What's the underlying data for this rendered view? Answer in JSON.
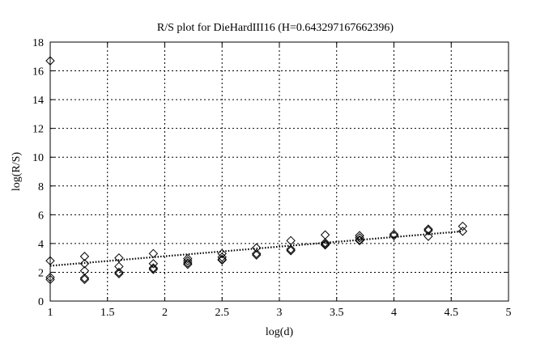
{
  "chart_data": {
    "type": "scatter",
    "title": "R/S plot for DieHardIII16 (H=0.643297167662396)",
    "xlabel": "log(d)",
    "ylabel": "log(R/S)",
    "xlim": [
      1,
      5
    ],
    "ylim": [
      0,
      18
    ],
    "xticks": [
      "1",
      "1.5",
      "2",
      "2.5",
      "3",
      "3.5",
      "4",
      "4.5",
      "5"
    ],
    "yticks": [
      "0",
      "2",
      "4",
      "6",
      "8",
      "10",
      "12",
      "14",
      "16",
      "18"
    ],
    "grid": true,
    "marker": "diamond",
    "points": [
      [
        1.0,
        16.7
      ],
      [
        1.0,
        2.8
      ],
      [
        1.0,
        1.65
      ],
      [
        1.0,
        1.5
      ],
      [
        1.3,
        3.1
      ],
      [
        1.3,
        2.6
      ],
      [
        1.3,
        2.1
      ],
      [
        1.3,
        1.6
      ],
      [
        1.3,
        1.5
      ],
      [
        1.6,
        3.0
      ],
      [
        1.6,
        2.4
      ],
      [
        1.6,
        2.0
      ],
      [
        1.6,
        1.9
      ],
      [
        1.9,
        3.3
      ],
      [
        1.9,
        2.6
      ],
      [
        1.9,
        2.3
      ],
      [
        1.9,
        2.2
      ],
      [
        2.2,
        2.95
      ],
      [
        2.2,
        2.8
      ],
      [
        2.2,
        2.65
      ],
      [
        2.2,
        2.55
      ],
      [
        2.5,
        3.3
      ],
      [
        2.5,
        3.05
      ],
      [
        2.5,
        2.9
      ],
      [
        2.5,
        2.85
      ],
      [
        2.8,
        3.7
      ],
      [
        2.8,
        3.3
      ],
      [
        2.8,
        3.2
      ],
      [
        3.1,
        4.2
      ],
      [
        3.1,
        3.6
      ],
      [
        3.1,
        3.5
      ],
      [
        3.4,
        4.6
      ],
      [
        3.4,
        4.05
      ],
      [
        3.4,
        3.95
      ],
      [
        3.4,
        3.9
      ],
      [
        3.7,
        4.55
      ],
      [
        3.7,
        4.4
      ],
      [
        3.7,
        4.25
      ],
      [
        3.7,
        4.2
      ],
      [
        4.0,
        4.65
      ],
      [
        4.0,
        4.55
      ],
      [
        4.3,
        5.0
      ],
      [
        4.3,
        4.9
      ],
      [
        4.3,
        4.5
      ],
      [
        4.6,
        5.2
      ],
      [
        4.6,
        4.85
      ]
    ],
    "fit_line": {
      "style": "dotted",
      "x": [
        1.0,
        4.6
      ],
      "y": [
        2.45,
        4.85
      ]
    }
  }
}
